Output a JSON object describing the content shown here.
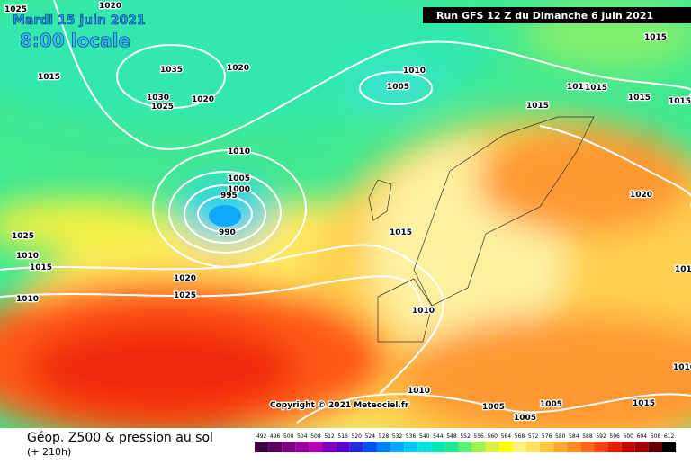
{
  "header": {
    "date": "Mardi 15 juin 2021",
    "time": "8:00 locale",
    "run": "Run GFS 12 Z du Dimanche 6 juin 2021"
  },
  "copyright": "Copyright © 2021 Meteociel.fr",
  "footer": {
    "title": "Géop. Z500 & pression au sol",
    "lead": "(+ 210h)"
  },
  "isobar_labels": [
    "1025",
    "1020",
    "1015",
    "1035",
    "1020",
    "1030",
    "1025",
    "1020",
    "1010",
    "1005",
    "1015",
    "1015",
    "1015",
    "1015",
    "1015",
    "1015",
    "1010",
    "1005",
    "1000",
    "995",
    "990",
    "1025",
    "1010",
    "1015",
    "1010",
    "1015",
    "1020",
    "1020",
    "1025",
    "1010",
    "1010",
    "1010",
    "1005",
    "1005",
    "1005",
    "1010",
    "1015"
  ],
  "scale": {
    "labels": [
      492,
      496,
      500,
      504,
      508,
      512,
      516,
      520,
      524,
      528,
      532,
      536,
      540,
      544,
      548,
      552,
      556,
      560,
      564,
      568,
      572,
      576,
      580,
      584,
      588,
      592,
      596,
      600,
      604,
      608,
      612
    ],
    "colors": [
      "#3a0040",
      "#5a0060",
      "#7a0080",
      "#9a00a0",
      "#b400b4",
      "#8000c0",
      "#5a00d0",
      "#2828e0",
      "#0050ff",
      "#0080ff",
      "#00a8ff",
      "#00c8ff",
      "#00e0e0",
      "#00e8b0",
      "#20e890",
      "#60ee70",
      "#a0f050",
      "#d8f040",
      "#ffff00",
      "#fff080",
      "#ffe060",
      "#ffc840",
      "#ffa830",
      "#ff8c20",
      "#ff6818",
      "#ff4010",
      "#e82000",
      "#c80000",
      "#a00000",
      "#600000",
      "#000000"
    ]
  }
}
